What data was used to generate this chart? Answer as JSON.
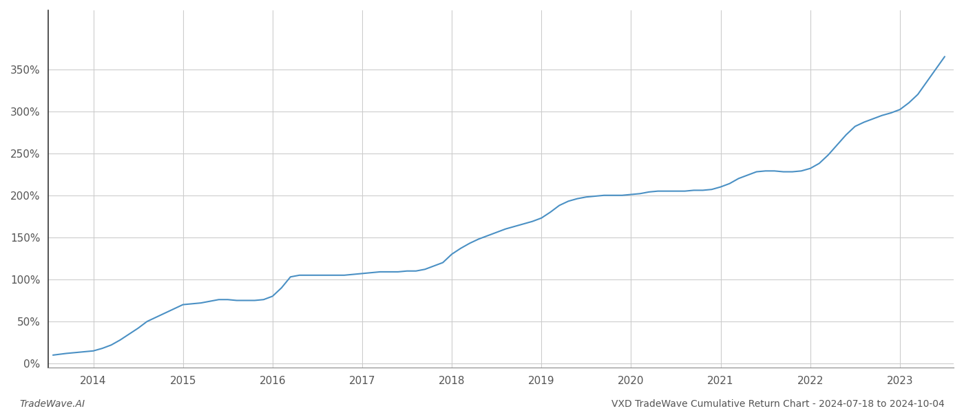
{
  "title": "",
  "footer_left": "TradeWave.AI",
  "footer_right": "VXD TradeWave Cumulative Return Chart - 2024-07-18 to 2024-10-04",
  "line_color": "#4a90c4",
  "background_color": "#ffffff",
  "grid_color": "#cccccc",
  "x_values": [
    2013.55,
    2013.7,
    2013.9,
    2014.0,
    2014.1,
    2014.2,
    2014.3,
    2014.4,
    2014.5,
    2014.6,
    2014.7,
    2014.8,
    2014.9,
    2015.0,
    2015.1,
    2015.2,
    2015.3,
    2015.4,
    2015.5,
    2015.6,
    2015.7,
    2015.8,
    2015.9,
    2016.0,
    2016.1,
    2016.2,
    2016.3,
    2016.4,
    2016.5,
    2016.6,
    2016.7,
    2016.8,
    2016.9,
    2017.0,
    2017.1,
    2017.2,
    2017.3,
    2017.4,
    2017.5,
    2017.6,
    2017.7,
    2017.8,
    2017.9,
    2018.0,
    2018.1,
    2018.2,
    2018.3,
    2018.4,
    2018.5,
    2018.6,
    2018.7,
    2018.8,
    2018.9,
    2019.0,
    2019.1,
    2019.2,
    2019.3,
    2019.4,
    2019.5,
    2019.6,
    2019.7,
    2019.8,
    2019.9,
    2020.0,
    2020.1,
    2020.2,
    2020.3,
    2020.4,
    2020.5,
    2020.6,
    2020.7,
    2020.8,
    2020.9,
    2021.0,
    2021.1,
    2021.2,
    2021.3,
    2021.4,
    2021.5,
    2021.6,
    2021.7,
    2021.8,
    2021.9,
    2022.0,
    2022.1,
    2022.2,
    2022.3,
    2022.4,
    2022.5,
    2022.6,
    2022.7,
    2022.8,
    2022.9,
    2023.0,
    2023.1,
    2023.2,
    2023.3,
    2023.4,
    2023.5
  ],
  "y_values": [
    10,
    12,
    14,
    15,
    18,
    22,
    28,
    35,
    42,
    50,
    55,
    60,
    65,
    70,
    71,
    72,
    74,
    76,
    76,
    75,
    75,
    75,
    76,
    80,
    90,
    103,
    105,
    105,
    105,
    105,
    105,
    105,
    106,
    107,
    108,
    109,
    109,
    109,
    110,
    110,
    112,
    116,
    120,
    130,
    137,
    143,
    148,
    152,
    156,
    160,
    163,
    166,
    169,
    173,
    180,
    188,
    193,
    196,
    198,
    199,
    200,
    200,
    200,
    201,
    202,
    204,
    205,
    205,
    205,
    205,
    206,
    206,
    207,
    210,
    214,
    220,
    224,
    228,
    229,
    229,
    228,
    228,
    229,
    232,
    238,
    248,
    260,
    272,
    282,
    287,
    291,
    295,
    298,
    302,
    310,
    320,
    335,
    350,
    365
  ],
  "xlim": [
    2013.5,
    2023.6
  ],
  "ylim": [
    -5,
    420
  ],
  "yticks": [
    0,
    50,
    100,
    150,
    200,
    250,
    300,
    350
  ],
  "xticks": [
    2014,
    2015,
    2016,
    2017,
    2018,
    2019,
    2020,
    2021,
    2022,
    2023
  ],
  "line_width": 1.5,
  "figsize": [
    14.0,
    6.0
  ],
  "dpi": 100
}
